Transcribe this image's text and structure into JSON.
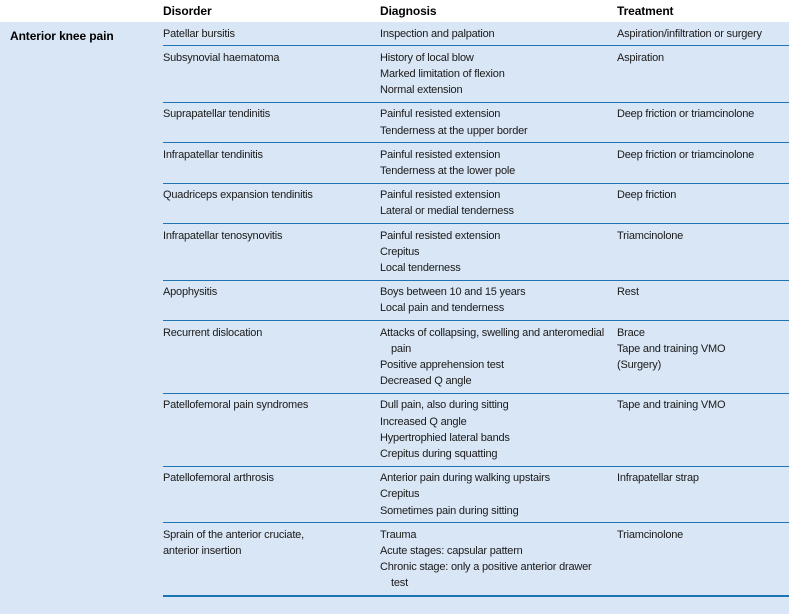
{
  "colors": {
    "panel_bg": "#d9e6f5",
    "rule": "#1d74b0",
    "text": "#1a1a1a",
    "header_text": "#000000"
  },
  "table": {
    "group_label": "Anterior knee pain",
    "columns": [
      "Disorder",
      "Diagnosis",
      "Treatment"
    ],
    "rows": [
      {
        "disorder": [
          "Patellar bursitis"
        ],
        "diagnosis": [
          "Inspection and palpation"
        ],
        "treatment": [
          "Aspiration/infiltration or surgery"
        ]
      },
      {
        "disorder": [
          "Subsynovial haematoma"
        ],
        "diagnosis": [
          "History of local blow",
          "Marked limitation of flexion",
          "Normal extension"
        ],
        "treatment": [
          "Aspiration"
        ]
      },
      {
        "disorder": [
          "Suprapatellar tendinitis"
        ],
        "diagnosis": [
          "Painful resisted extension",
          "Tenderness at the upper border"
        ],
        "treatment": [
          "Deep friction or triamcinolone"
        ]
      },
      {
        "disorder": [
          "Infrapatellar tendinitis"
        ],
        "diagnosis": [
          "Painful resisted extension",
          "Tenderness at the lower pole"
        ],
        "treatment": [
          "Deep friction or triamcinolone"
        ]
      },
      {
        "disorder": [
          "Quadriceps expansion tendinitis"
        ],
        "diagnosis": [
          "Painful resisted extension",
          "Lateral or medial tenderness"
        ],
        "treatment": [
          "Deep friction"
        ]
      },
      {
        "disorder": [
          "Infrapatellar tenosynovitis"
        ],
        "diagnosis": [
          "Painful resisted extension",
          "Crepitus",
          "Local tenderness"
        ],
        "treatment": [
          "Triamcinolone"
        ]
      },
      {
        "disorder": [
          "Apophysitis"
        ],
        "diagnosis": [
          "Boys between 10 and 15 years",
          "Local pain and tenderness"
        ],
        "treatment": [
          "Rest"
        ]
      },
      {
        "disorder": [
          "Recurrent dislocation"
        ],
        "diagnosis": [
          "Attacks of collapsing, swelling and anteromedial pain",
          "Positive apprehension test",
          "Decreased Q angle"
        ],
        "treatment": [
          "Brace",
          "Tape and training VMO",
          "(Surgery)"
        ]
      },
      {
        "disorder": [
          "Patellofemoral pain syndromes"
        ],
        "diagnosis": [
          "Dull pain, also during sitting",
          "Increased Q angle",
          "Hypertrophied lateral bands",
          "Crepitus during squatting"
        ],
        "treatment": [
          "Tape and training VMO"
        ]
      },
      {
        "disorder": [
          "Patellofemoral arthrosis"
        ],
        "diagnosis": [
          "Anterior pain during walking upstairs",
          "Crepitus",
          "Sometimes pain during sitting"
        ],
        "treatment": [
          "Infrapatellar strap"
        ]
      },
      {
        "disorder": [
          "Sprain of the anterior cruciate,",
          "anterior insertion"
        ],
        "diagnosis": [
          "Trauma",
          "Acute stages: capsular pattern",
          "Chronic stage: only a positive anterior drawer test"
        ],
        "treatment": [
          "Triamcinolone"
        ]
      }
    ]
  }
}
